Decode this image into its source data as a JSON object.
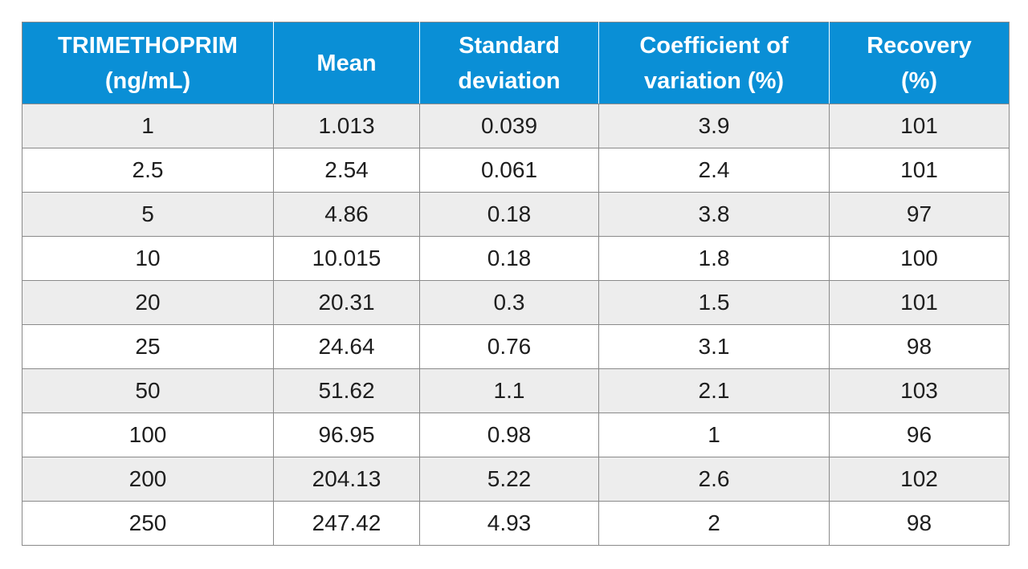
{
  "table": {
    "headers": [
      [
        "TRIMETHOPRIM",
        "(ng/mL)"
      ],
      [
        "Mean"
      ],
      [
        "Standard",
        "deviation"
      ],
      [
        "Coefficient of",
        "variation (%)"
      ],
      [
        "Recovery",
        "(%)"
      ]
    ],
    "rows": [
      [
        "1",
        "1.013",
        "0.039",
        "3.9",
        "101"
      ],
      [
        "2.5",
        "2.54",
        "0.061",
        "2.4",
        "101"
      ],
      [
        "5",
        "4.86",
        "0.18",
        "3.8",
        "97"
      ],
      [
        "10",
        "10.015",
        "0.18",
        "1.8",
        "100"
      ],
      [
        "20",
        "20.31",
        "0.3",
        "1.5",
        "101"
      ],
      [
        "25",
        "24.64",
        "0.76",
        "3.1",
        "98"
      ],
      [
        "50",
        "51.62",
        "1.1",
        "2.1",
        "103"
      ],
      [
        "100",
        "96.95",
        "0.98",
        "1",
        "96"
      ],
      [
        "200",
        "204.13",
        "5.22",
        "2.6",
        "102"
      ],
      [
        "250",
        "247.42",
        "4.93",
        "2",
        "98"
      ]
    ]
  },
  "colors": {
    "header_bg": "#0a8fd6",
    "header_text": "#ffffff",
    "row_alt_bg": "#ededed",
    "border": "#8a8a8a"
  }
}
